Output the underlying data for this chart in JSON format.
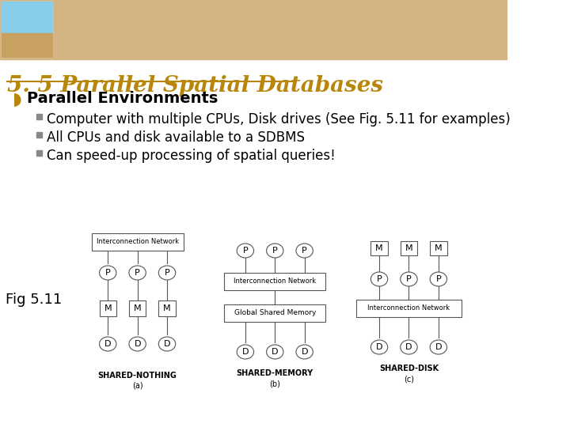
{
  "title": "5. 5 Parallel Spatial Databases",
  "title_color": "#B8860B",
  "title_fontsize": 20,
  "title_style": "italic",
  "title_weight": "bold",
  "bg_color": "#ffffff",
  "header_bg": "#D4B483",
  "bullet_main": "Parallel Environments",
  "bullet_main_symbol": "◗",
  "bullet_main_color": "#B8860B",
  "sub_bullets": [
    "Computer with multiple CPUs, Disk drives (See Fig. 5.11 for examples)",
    "All CPUs and disk available to a SDBMS",
    "Can speed-up processing of spatial queries!"
  ],
  "sub_bullet_fontsize": 12,
  "fig_label": "Fig 5.11",
  "diagram_labels_a": [
    "SHARED-NOTHING",
    "(a)"
  ],
  "diagram_labels_b": [
    "SHARED-MEMORY",
    "(b)"
  ],
  "diagram_labels_c": [
    "SHARED-DISK",
    "(c)"
  ],
  "box_color": "#d0d0d0",
  "line_color": "#555555",
  "text_color": "#000000"
}
